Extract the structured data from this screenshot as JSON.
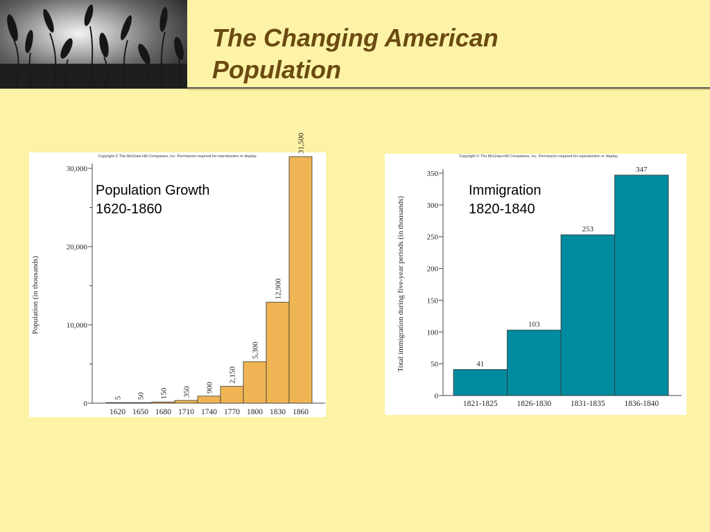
{
  "slide": {
    "title_line1": "The Changing American",
    "title_line2": "Population"
  },
  "colors": {
    "pop_bar": "#efb554",
    "imm_bar": "#008b9e",
    "title": "#6b4a12",
    "background": "#fdf3a7"
  },
  "chart_data": [
    {
      "type": "bar",
      "title": "Population Growth\n1620-1860",
      "annotation_line1": "Population Growth",
      "annotation_line2": "1620-1860",
      "copyright": "Copyright © The McGraw-Hill Companies, Inc. Permission required for reproduction or display.",
      "ylabel": "Population (in thousands)",
      "xlabel": "",
      "categories": [
        "1620",
        "1650",
        "1680",
        "1710",
        "1740",
        "1770",
        "1800",
        "1830",
        "1860"
      ],
      "values": [
        5,
        50,
        150,
        350,
        900,
        2150,
        5300,
        12900,
        31500
      ],
      "value_labels": [
        "5",
        "50",
        "150",
        "350",
        "900",
        "2,150",
        "5,300",
        "12,900",
        "31,500"
      ],
      "yticks": [
        0,
        10000,
        20000,
        30000
      ],
      "ytick_labels": [
        "0",
        "10,000",
        "20,000",
        "30,000"
      ],
      "ylim": [
        0,
        30000
      ],
      "grid": false,
      "legend": "none"
    },
    {
      "type": "bar",
      "title": "Immigration\n1820-1840",
      "annotation_line1": "Immigration",
      "annotation_line2": "1820-1840",
      "copyright": "Copyright © The McGraw-Hill Companies, Inc. Permission required for reproduction or display.",
      "ylabel": "Total immigration during five-year periods (in thousands)",
      "xlabel": "",
      "categories": [
        "1821-1825",
        "1826-1830",
        "1831-1835",
        "1836-1840"
      ],
      "values": [
        41,
        103,
        253,
        347
      ],
      "value_labels": [
        "41",
        "103",
        "253",
        "347"
      ],
      "yticks": [
        0,
        50,
        100,
        150,
        200,
        250,
        300,
        350
      ],
      "ytick_labels": [
        "0",
        "50",
        "100",
        "150",
        "200",
        "250",
        "300",
        "350"
      ],
      "ylim": [
        0,
        350
      ],
      "grid": false,
      "legend": "none"
    }
  ]
}
